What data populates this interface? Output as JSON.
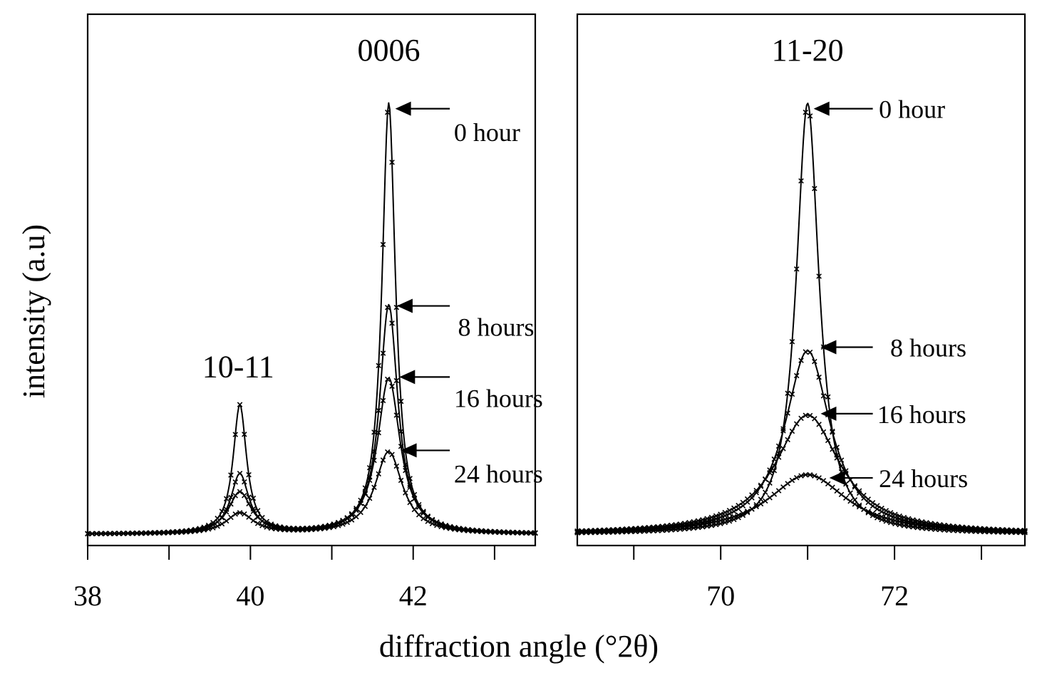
{
  "chart_data": {
    "type": "line",
    "xlabel": "diffraction angle (°2θ)",
    "ylabel": "intensity (a.u)",
    "panels": [
      {
        "xlim": [
          38,
          43.5
        ],
        "ylim": [
          0,
          1.0
        ],
        "xticks": [
          38,
          39,
          40,
          41,
          42,
          43
        ],
        "xticklabels": [
          {
            "x": 38,
            "label": "38"
          },
          {
            "x": 40,
            "label": "40"
          },
          {
            "x": 42,
            "label": "42"
          }
        ],
        "peak_labels": [
          {
            "x": 39.85,
            "y": 0.355,
            "label": "10-11"
          },
          {
            "x": 41.7,
            "y": 1.045,
            "label": "0006"
          }
        ],
        "peaks": [
          {
            "center": 39.87,
            "width": 0.1
          },
          {
            "center": 41.7,
            "width": 0.1
          }
        ],
        "series": [
          {
            "name": "0 hour",
            "amplitudes": [
              0.28,
              0.94
            ],
            "baseline": 0.012
          },
          {
            "name": "8 hours",
            "amplitudes": [
              0.13,
              0.5
            ],
            "baseline": 0.012
          },
          {
            "name": "16 hours",
            "amplitudes": [
              0.09,
              0.34
            ],
            "baseline": 0.012
          },
          {
            "name": "24 hours",
            "amplitudes": [
              0.045,
              0.18
            ],
            "baseline": 0.012
          }
        ],
        "annotations": [
          {
            "series": "0 hour",
            "label": "0 hour",
            "tip": [
              41.78,
              0.94
            ],
            "tail": [
              42.45,
              0.94
            ],
            "text_at": [
              42.5,
              0.89
            ]
          },
          {
            "series": "8 hours",
            "label": "8 hours",
            "tip": [
              41.8,
              0.51
            ],
            "tail": [
              42.45,
              0.51
            ],
            "text_at": [
              42.55,
              0.465
            ]
          },
          {
            "series": "16 hours",
            "label": "16 hours",
            "tip": [
              41.83,
              0.355
            ],
            "tail": [
              42.45,
              0.355
            ],
            "text_at": [
              42.5,
              0.31
            ]
          },
          {
            "series": "24 hours",
            "label": "24 hours",
            "tip": [
              41.85,
              0.195
            ],
            "tail": [
              42.45,
              0.195
            ],
            "text_at": [
              42.5,
              0.145
            ]
          }
        ]
      },
      {
        "xlim": [
          68.35,
          73.5
        ],
        "ylim": [
          0,
          1.0
        ],
        "xticks": [
          69,
          70,
          71,
          72,
          73
        ],
        "xticklabels": [
          {
            "x": 70,
            "label": "70"
          },
          {
            "x": 72,
            "label": "72"
          }
        ],
        "peak_labels": [
          {
            "x": 71.0,
            "y": 1.045,
            "label": "11-20"
          }
        ],
        "peaks": [
          {
            "center": 71.0,
            "width": 0.16
          }
        ],
        "series": [
          {
            "name": "0 hour",
            "amplitudes": [
              0.94
            ],
            "baseline": 0.012,
            "widths": [
              0.16
            ]
          },
          {
            "name": "8 hours",
            "amplitudes": [
              0.4
            ],
            "baseline": 0.012,
            "widths": [
              0.32
            ]
          },
          {
            "name": "16 hours",
            "amplitudes": [
              0.26
            ],
            "baseline": 0.012,
            "widths": [
              0.45
            ]
          },
          {
            "name": "24 hours",
            "amplitudes": [
              0.13
            ],
            "baseline": 0.012,
            "widths": [
              0.55
            ]
          }
        ],
        "annotations": [
          {
            "series": "0 hour",
            "label": "0 hour",
            "tip": [
              71.07,
              0.94
            ],
            "tail": [
              71.75,
              0.94
            ],
            "text_at": [
              71.82,
              0.94
            ]
          },
          {
            "series": "8 hours",
            "label": "8 hours",
            "tip": [
              71.15,
              0.42
            ],
            "tail": [
              71.75,
              0.42
            ],
            "text_at": [
              71.95,
              0.42
            ]
          },
          {
            "series": "16 hours",
            "label": "16 hours",
            "tip": [
              71.15,
              0.275
            ],
            "tail": [
              71.75,
              0.275
            ],
            "text_at": [
              71.8,
              0.275
            ]
          },
          {
            "series": "24 hours",
            "label": "24 hours",
            "tip": [
              71.25,
              0.135
            ],
            "tail": [
              71.75,
              0.135
            ],
            "text_at": [
              71.82,
              0.135
            ]
          }
        ]
      }
    ]
  }
}
